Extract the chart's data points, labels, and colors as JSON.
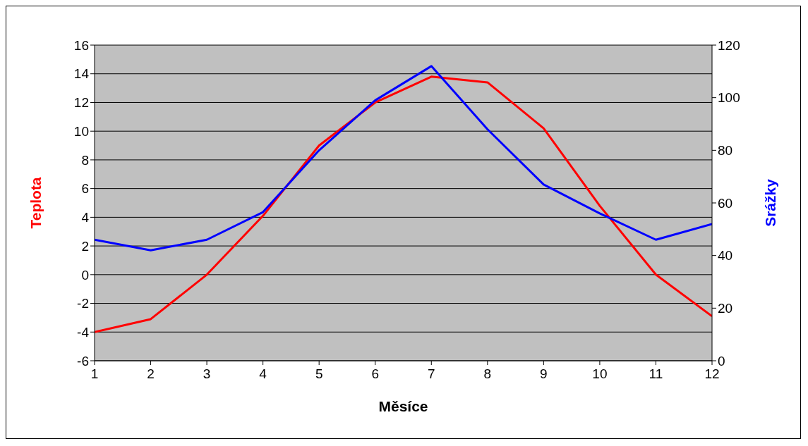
{
  "chart_data": {
    "type": "line",
    "xlabel": "Měsíce",
    "ylabel": "Teplota",
    "y2label": "Srážky",
    "x": [
      1,
      2,
      3,
      4,
      5,
      6,
      7,
      8,
      9,
      10,
      11,
      12
    ],
    "series": [
      {
        "color": "#ff0000",
        "values": [
          -4,
          -3.1,
          0,
          4.1,
          9,
          12,
          13.8,
          13.4,
          10.2,
          4.8,
          0,
          -2.9
        ]
      },
      {
        "color": "#0000ff",
        "axis": "y2",
        "values": [
          46,
          42,
          46,
          56.5,
          80,
          99,
          112,
          88,
          67,
          56,
          46,
          52
        ]
      }
    ],
    "xlim": [
      1,
      12
    ],
    "xticks": [
      1,
      2,
      3,
      4,
      5,
      6,
      7,
      8,
      9,
      10,
      11,
      12
    ],
    "ylim": [
      -6,
      16
    ],
    "yticks": [
      -6,
      -4,
      -2,
      0,
      2,
      4,
      6,
      8,
      10,
      12,
      14,
      16
    ],
    "y2lim": [
      0,
      120
    ],
    "y2ticks": [
      0,
      20,
      40,
      60,
      80,
      100,
      120
    ],
    "grid": "y",
    "legend": false,
    "marker": "none",
    "line_style": "solid"
  }
}
